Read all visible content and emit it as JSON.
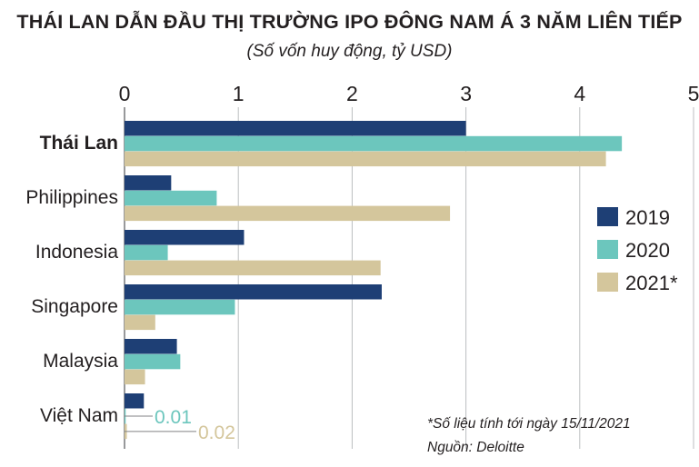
{
  "title": "THÁI LAN DẪN ĐẦU THỊ TRƯỜNG IPO ĐÔNG NAM Á 3 NĂM LIÊN TIẾP",
  "subtitle": "(Số vốn huy động, tỷ USD)",
  "footnote": "*Số liệu tính tới ngày 15/11/2021",
  "source": "Nguồn: Deloitte",
  "chart_data": {
    "type": "bar",
    "orientation": "horizontal",
    "categories": [
      "Thái Lan",
      "Philippines",
      "Indonesia",
      "Singapore",
      "Malaysia",
      "Việt Nam"
    ],
    "highlight_category": "Thái Lan",
    "series": [
      {
        "name": "2019",
        "color": "#1e3f75",
        "values": [
          3.0,
          0.41,
          1.05,
          2.26,
          0.46,
          0.17
        ]
      },
      {
        "name": "2020",
        "color": "#6cc6bd",
        "values": [
          4.37,
          0.81,
          0.38,
          0.97,
          0.49,
          0.01
        ]
      },
      {
        "name": "2021*",
        "color": "#d4c69c",
        "values": [
          4.23,
          2.86,
          2.25,
          0.27,
          0.18,
          0.02
        ]
      }
    ],
    "value_labels": [
      {
        "category": "Việt Nam",
        "series": "2020",
        "text": "0.01"
      },
      {
        "category": "Việt Nam",
        "series": "2021*",
        "text": "0.02"
      }
    ],
    "xlim": [
      0,
      5
    ],
    "xticks": [
      "0",
      "1",
      "2",
      "3",
      "4",
      "5"
    ],
    "grid": true,
    "axis_position": "top",
    "legend_position": "right"
  }
}
